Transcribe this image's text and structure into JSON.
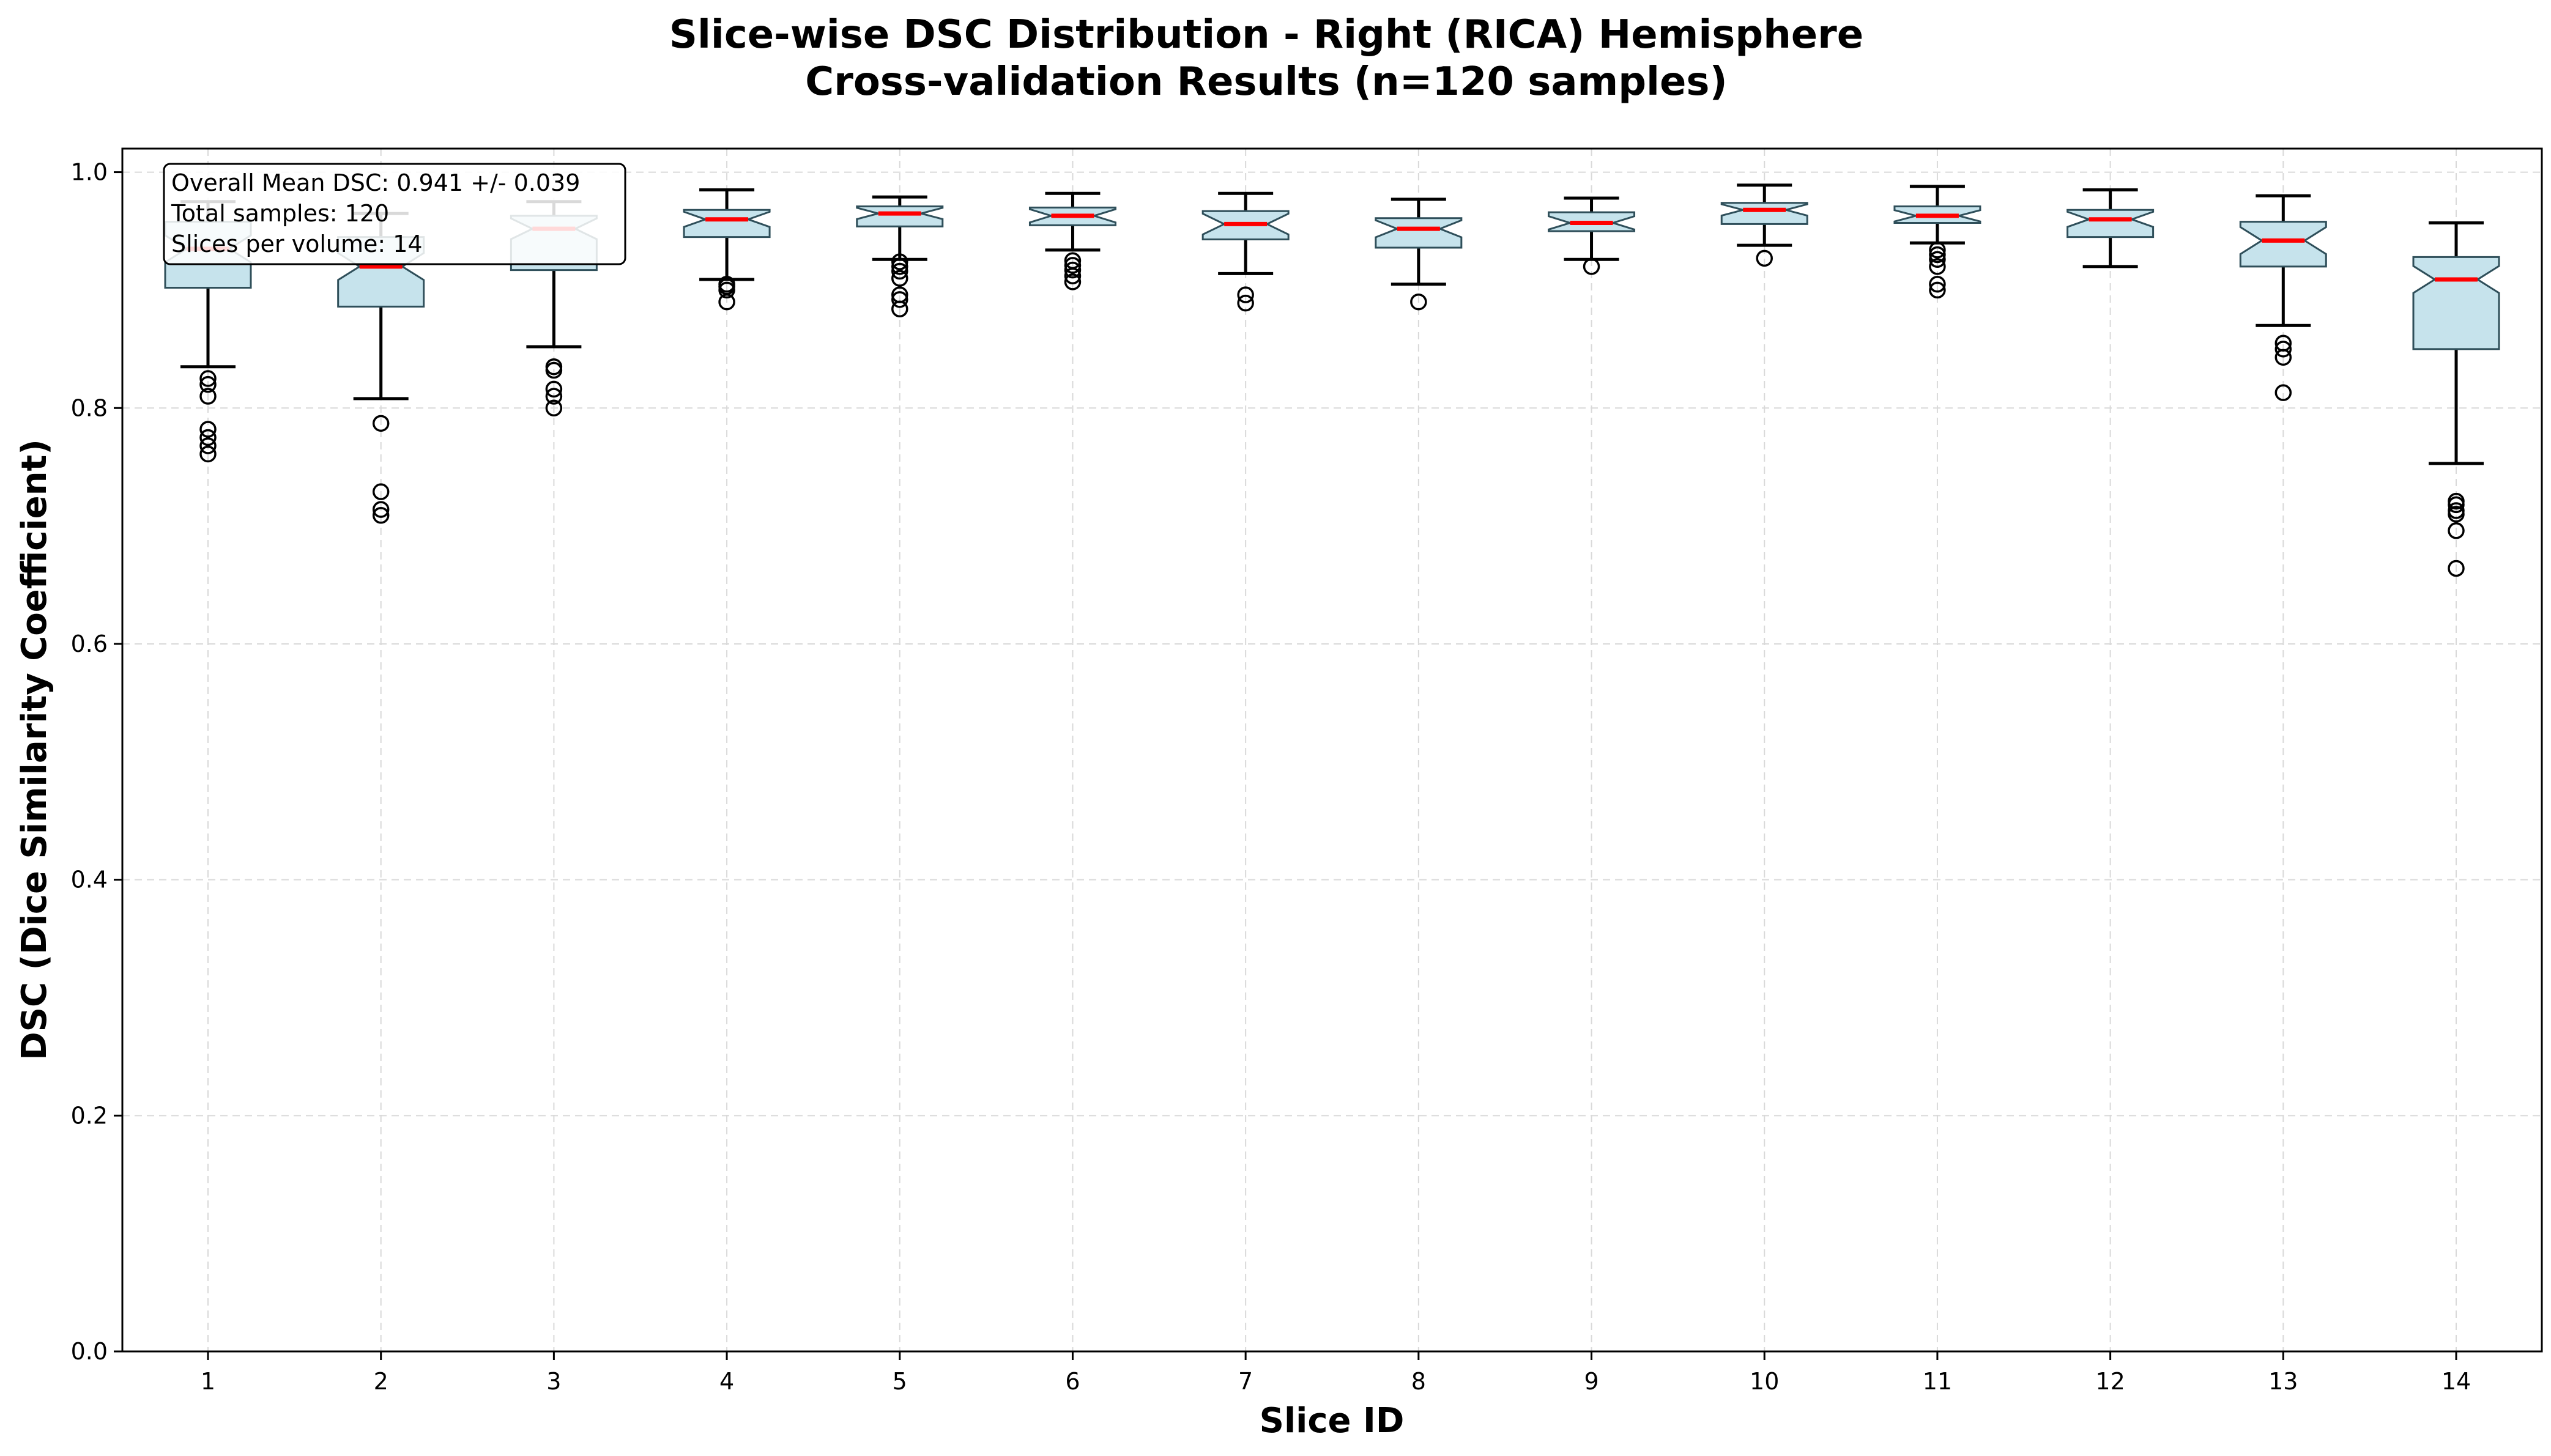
{
  "chart_data": {
    "type": "box",
    "title_line1": "Slice-wise DSC Distribution - Right (RICA) Hemisphere",
    "title_line2": "Cross-validation Results (n=120 samples)",
    "xlabel": "Slice ID",
    "ylabel": "DSC (Dice Similarity Coefficient)",
    "ylim": [
      0.0,
      1.02
    ],
    "yticks": [
      "0.0",
      "0.2",
      "0.4",
      "0.6",
      "0.8",
      "1.0"
    ],
    "grid": true,
    "categories": [
      "1",
      "2",
      "3",
      "4",
      "5",
      "6",
      "7",
      "8",
      "9",
      "10",
      "11",
      "12",
      "13",
      "14"
    ],
    "stats_box": {
      "line1": "Overall Mean DSC: 0.941 +/- 0.039",
      "line2": "Total samples: 120",
      "line3": "Slices per volume: 14"
    },
    "colors": {
      "box_fill": "#c6e3ec",
      "box_edge": "#2f4f5a",
      "median": "#ff0000",
      "whisker": "#000000",
      "grid": "#d9d9d9"
    },
    "boxes": [
      {
        "slice": 1,
        "whislo": 0.835,
        "q1": 0.902,
        "med": 0.935,
        "q3": 0.958,
        "whishi": 0.975,
        "fliers": [
          0.825,
          0.82,
          0.81,
          0.782,
          0.775,
          0.768,
          0.761
        ]
      },
      {
        "slice": 2,
        "whislo": 0.808,
        "q1": 0.886,
        "med": 0.92,
        "q3": 0.945,
        "whishi": 0.965,
        "fliers": [
          0.787,
          0.729,
          0.714,
          0.709
        ]
      },
      {
        "slice": 3,
        "whislo": 0.852,
        "q1": 0.917,
        "med": 0.952,
        "q3": 0.963,
        "whishi": 0.975,
        "fliers": [
          0.835,
          0.832,
          0.816,
          0.81,
          0.8
        ]
      },
      {
        "slice": 4,
        "whislo": 0.909,
        "q1": 0.945,
        "med": 0.96,
        "q3": 0.968,
        "whishi": 0.985,
        "fliers": [
          0.905,
          0.903,
          0.9,
          0.89
        ]
      },
      {
        "slice": 5,
        "whislo": 0.926,
        "q1": 0.954,
        "med": 0.965,
        "q3": 0.971,
        "whishi": 0.979,
        "fliers": [
          0.924,
          0.92,
          0.916,
          0.91,
          0.896,
          0.892,
          0.884
        ]
      },
      {
        "slice": 6,
        "whislo": 0.934,
        "q1": 0.955,
        "med": 0.963,
        "q3": 0.97,
        "whishi": 0.982,
        "fliers": [
          0.925,
          0.921,
          0.917,
          0.912,
          0.907
        ]
      },
      {
        "slice": 7,
        "whislo": 0.914,
        "q1": 0.943,
        "med": 0.956,
        "q3": 0.967,
        "whishi": 0.982,
        "fliers": [
          0.896,
          0.889
        ]
      },
      {
        "slice": 8,
        "whislo": 0.905,
        "q1": 0.936,
        "med": 0.952,
        "q3": 0.961,
        "whishi": 0.977,
        "fliers": [
          0.89
        ]
      },
      {
        "slice": 9,
        "whislo": 0.926,
        "q1": 0.95,
        "med": 0.957,
        "q3": 0.966,
        "whishi": 0.978,
        "fliers": [
          0.92
        ]
      },
      {
        "slice": 10,
        "whislo": 0.938,
        "q1": 0.956,
        "med": 0.968,
        "q3": 0.974,
        "whishi": 0.989,
        "fliers": [
          0.927
        ]
      },
      {
        "slice": 11,
        "whislo": 0.94,
        "q1": 0.957,
        "med": 0.963,
        "q3": 0.971,
        "whishi": 0.988,
        "fliers": [
          0.934,
          0.93,
          0.926,
          0.92,
          0.905,
          0.9
        ]
      },
      {
        "slice": 12,
        "whislo": 0.92,
        "q1": 0.945,
        "med": 0.96,
        "q3": 0.968,
        "whishi": 0.985,
        "fliers": []
      },
      {
        "slice": 13,
        "whislo": 0.87,
        "q1": 0.92,
        "med": 0.942,
        "q3": 0.958,
        "whishi": 0.98,
        "fliers": [
          0.855,
          0.85,
          0.843,
          0.813
        ]
      },
      {
        "slice": 14,
        "whislo": 0.753,
        "q1": 0.85,
        "med": 0.909,
        "q3": 0.928,
        "whishi": 0.957,
        "fliers": [
          0.721,
          0.718,
          0.713,
          0.71,
          0.696,
          0.664
        ]
      }
    ]
  }
}
